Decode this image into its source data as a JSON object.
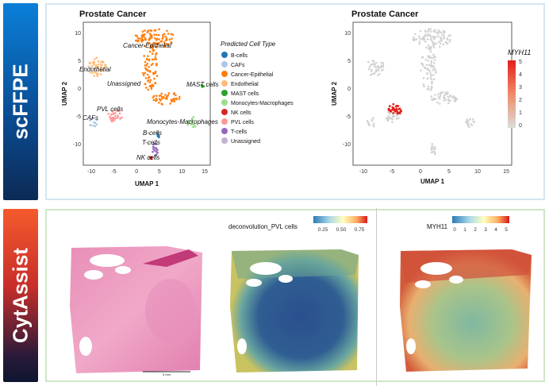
{
  "sections": {
    "top_label": "scFFPE",
    "bottom_label": "CytAssist"
  },
  "umap_left": {
    "title": "Prostate Cancer",
    "xlabel": "UMAP 1",
    "ylabel": "UMAP 2",
    "xticks": [
      "-10",
      "-5",
      "0",
      "5",
      "10",
      "15"
    ],
    "yticks": [
      "10",
      "5",
      "0",
      "-5",
      "-10"
    ],
    "cluster_labels": {
      "cancer_epithelial": "Cancer-Epithelial",
      "endothelial": "Endothelial",
      "unassigned": "Unassigned",
      "mast": "MAST cells",
      "pvl": "PVL cells",
      "cafs": "CAFs",
      "mono": "Monocytes-Macrophages",
      "bcells": "B-cells",
      "tcells": "T-cells",
      "nk": "NK cells"
    },
    "legend_title": "Predicted Cell Type",
    "legend": [
      {
        "label": "B-cells",
        "color": "#1f77b4"
      },
      {
        "label": "CAFs",
        "color": "#aec7e8"
      },
      {
        "label": "Cancer-Epithelial",
        "color": "#ff7f0e"
      },
      {
        "label": "Endothelial",
        "color": "#ffbb78"
      },
      {
        "label": "MAST cells",
        "color": "#2ca02c"
      },
      {
        "label": "Monocytes-Macrophages",
        "color": "#98df8a"
      },
      {
        "label": "NK cells",
        "color": "#d62728"
      },
      {
        "label": "PVL cells",
        "color": "#ff9896"
      },
      {
        "label": "T-cells",
        "color": "#9467bd"
      },
      {
        "label": "Unassigned",
        "color": "#c5b0d5"
      }
    ]
  },
  "umap_right": {
    "title": "Prostate Cancer",
    "xlabel": "UMAP 1",
    "ylabel": "UMAP 2",
    "xticks": [
      "-10",
      "-5",
      "0",
      "5",
      "10",
      "15"
    ],
    "yticks": [
      "10",
      "5",
      "0",
      "-5",
      "-10"
    ],
    "colorbar_title": "MYH11",
    "colorbar_ticks": [
      "5",
      "4",
      "3",
      "2",
      "1",
      "0"
    ]
  },
  "spatial": {
    "he_scale_label": "5 mm",
    "pvl_title": "deconvolution_PVL cells",
    "pvl_ticks": [
      "0.25",
      "0.50",
      "0.75"
    ],
    "myh11_title": "MYH11",
    "myh11_ticks": [
      "0",
      "1",
      "2",
      "3",
      "4",
      "5"
    ]
  },
  "colors": {
    "scffpe_blue": "#0b7fd9",
    "cytassist_red": "#f45a2c",
    "grey_cells": "#d3d3d3",
    "he_pink": "#e98fb8"
  }
}
